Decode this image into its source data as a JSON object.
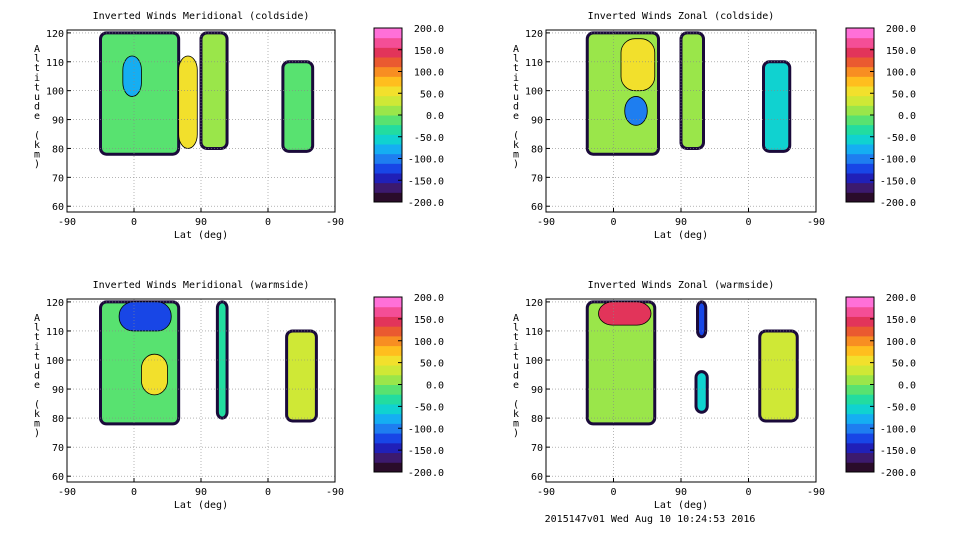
{
  "footer": "2015147v01 Wed Aug 10 10:24:53 2016",
  "colorbar": {
    "ticks": [
      "200.0",
      "150.0",
      "100.0",
      "50.0",
      "0.0",
      "-50.0",
      "-100.0",
      "-150.0",
      "-200.0"
    ],
    "range": [
      -200,
      200
    ],
    "colors": [
      "#2a0c2a",
      "#3c1a6e",
      "#2020b8",
      "#1846e6",
      "#1e7ef0",
      "#15aef2",
      "#10d2d0",
      "#22dca0",
      "#58e270",
      "#9ae64a",
      "#cfe836",
      "#f2e02c",
      "#ffbe1e",
      "#f88e22",
      "#ea5a30",
      "#e2345a",
      "#f44e96",
      "#ff70d8"
    ]
  },
  "chart_data": [
    {
      "type": "heatmap",
      "title": "Inverted Winds Meridional (coldside)",
      "xlabel": "Lat (deg)",
      "ylabel": "Altitude (km)",
      "x_tick_labels": [
        "-90",
        "0",
        "90",
        "0",
        "-90"
      ],
      "y_ticks": [
        60,
        70,
        80,
        90,
        100,
        110,
        120
      ],
      "ylim": [
        58,
        121
      ],
      "grid": true,
      "regions": [
        {
          "segment": "ascending",
          "lat_range": [
            -45,
            60
          ],
          "alt_range": [
            78,
            120
          ],
          "value": -20
        },
        {
          "segment": "ascending",
          "lat_range": [
            60,
            85
          ],
          "alt_range": [
            80,
            112
          ],
          "value": 55
        },
        {
          "segment": "ascending",
          "lat_range": [
            -15,
            10
          ],
          "alt_range": [
            98,
            112
          ],
          "value": -70
        },
        {
          "segment": "ascending",
          "lat_range": [
            90,
            125
          ],
          "alt_range": [
            80,
            120
          ],
          "value": 20
        },
        {
          "segment": "descending",
          "lat_range": [
            -20,
            -60
          ],
          "alt_range": [
            79,
            110
          ],
          "value": -10
        }
      ]
    },
    {
      "type": "heatmap",
      "title": "Inverted Winds Zonal (coldside)",
      "xlabel": "Lat (deg)",
      "ylabel": "Altitude (km)",
      "x_tick_labels": [
        "-90",
        "0",
        "90",
        "0",
        "-90"
      ],
      "y_ticks": [
        60,
        70,
        80,
        90,
        100,
        110,
        120
      ],
      "ylim": [
        58,
        121
      ],
      "grid": true,
      "regions": [
        {
          "segment": "ascending",
          "lat_range": [
            -35,
            60
          ],
          "alt_range": [
            78,
            120
          ],
          "value": 0
        },
        {
          "segment": "ascending",
          "lat_range": [
            10,
            55
          ],
          "alt_range": [
            100,
            118
          ],
          "value": 55
        },
        {
          "segment": "ascending",
          "lat_range": [
            15,
            45
          ],
          "alt_range": [
            88,
            98
          ],
          "value": -90
        },
        {
          "segment": "ascending",
          "lat_range": [
            90,
            120
          ],
          "alt_range": [
            80,
            120
          ],
          "value": 20
        },
        {
          "segment": "descending",
          "lat_range": [
            -20,
            -55
          ],
          "alt_range": [
            79,
            110
          ],
          "value": -60
        }
      ]
    },
    {
      "type": "heatmap",
      "title": "Inverted Winds Meridional (warmside)",
      "xlabel": "Lat (deg)",
      "ylabel": "Altitude (km)",
      "x_tick_labels": [
        "-90",
        "0",
        "90",
        "0",
        "-90"
      ],
      "y_ticks": [
        60,
        70,
        80,
        90,
        100,
        110,
        120
      ],
      "ylim": [
        58,
        121
      ],
      "grid": true,
      "regions": [
        {
          "segment": "ascending",
          "lat_range": [
            -45,
            60
          ],
          "alt_range": [
            78,
            120
          ],
          "value": -10
        },
        {
          "segment": "ascending",
          "lat_range": [
            -20,
            50
          ],
          "alt_range": [
            110,
            120
          ],
          "value": -120
        },
        {
          "segment": "ascending",
          "lat_range": [
            10,
            45
          ],
          "alt_range": [
            88,
            102
          ],
          "value": 60
        },
        {
          "segment": "ascending",
          "lat_range": [
            112,
            125
          ],
          "alt_range": [
            80,
            120
          ],
          "value": -40
        },
        {
          "segment": "descending",
          "lat_range": [
            -25,
            -65
          ],
          "alt_range": [
            79,
            110
          ],
          "value": 30
        }
      ]
    },
    {
      "type": "heatmap",
      "title": "Inverted Winds Zonal (warmside)",
      "xlabel": "Lat (deg)",
      "ylabel": "Altitude (km)",
      "x_tick_labels": [
        "-90",
        "0",
        "90",
        "0",
        "-90"
      ],
      "y_ticks": [
        60,
        70,
        80,
        90,
        100,
        110,
        120
      ],
      "ylim": [
        58,
        121
      ],
      "grid": true,
      "regions": [
        {
          "segment": "ascending",
          "lat_range": [
            -35,
            55
          ],
          "alt_range": [
            78,
            120
          ],
          "value": 20
        },
        {
          "segment": "ascending",
          "lat_range": [
            -20,
            50
          ],
          "alt_range": [
            112,
            120
          ],
          "value": 140
        },
        {
          "segment": "ascending",
          "lat_range": [
            110,
            125
          ],
          "alt_range": [
            82,
            96
          ],
          "value": -60
        },
        {
          "segment": "ascending",
          "lat_range": [
            112,
            123
          ],
          "alt_range": [
            108,
            120
          ],
          "value": -120
        },
        {
          "segment": "descending",
          "lat_range": [
            -15,
            -65
          ],
          "alt_range": [
            79,
            110
          ],
          "value": 40
        }
      ]
    }
  ]
}
